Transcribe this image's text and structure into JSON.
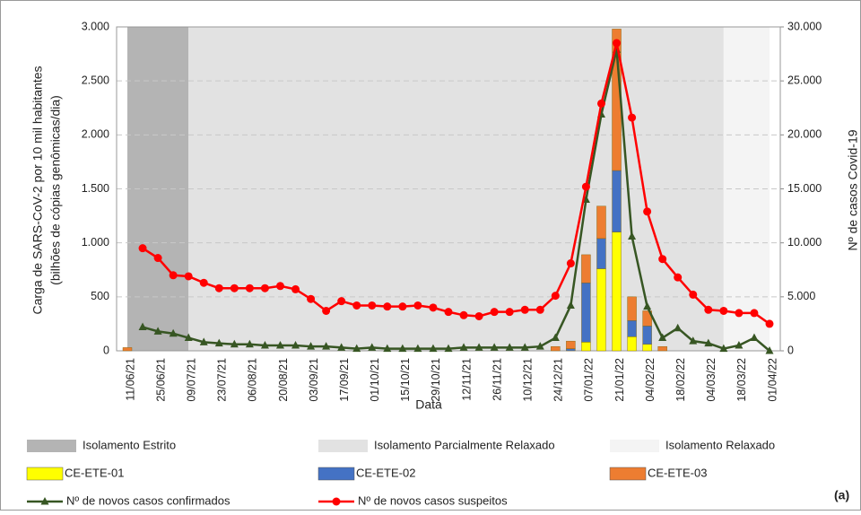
{
  "chart_data": {
    "type": "bar",
    "xlabel": "Data",
    "ylabel": [
      "Carga de SARS-CoV-2 por 10 mil habitantes",
      "(bilhões de cópias genômicas/dia)"
    ],
    "y2label": "Nº de casos Covid-19",
    "annotation": "(a)",
    "categories": [
      "11/06/21",
      null,
      "25/06/21",
      null,
      "09/07/21",
      null,
      "23/07/21",
      null,
      "06/08/21",
      null,
      "20/08/21",
      null,
      "03/09/21",
      null,
      "17/09/21",
      null,
      "01/10/21",
      null,
      "15/10/21",
      null,
      "29/10/21",
      null,
      "12/11/21",
      null,
      "26/11/21",
      null,
      "10/12/21",
      null,
      "24/12/21",
      null,
      "07/01/22",
      null,
      "21/01/22",
      null,
      "04/02/22",
      null,
      "18/02/22",
      null,
      "04/03/22",
      null,
      "18/03/22",
      null,
      "01/04/22"
    ],
    "ylim": [
      0,
      3000
    ],
    "yticks": [
      0,
      {
        "value": 500,
        "label": "500"
      },
      {
        "value": 1000,
        "label": "1.000"
      },
      {
        "value": 1500,
        "label": "1.500"
      },
      {
        "value": 2000,
        "label": "2.000"
      },
      {
        "value": 2500,
        "label": "2.500"
      },
      {
        "value": 3000,
        "label": "3.000"
      }
    ],
    "y2lim": [
      0,
      30000
    ],
    "y2ticks": [
      0,
      {
        "value": 5000,
        "label": "5.000"
      },
      {
        "value": 10000,
        "label": "10.000"
      },
      {
        "value": 15000,
        "label": "15.000"
      },
      {
        "value": 20000,
        "label": "20.000"
      },
      {
        "value": 25000,
        "label": "25.000"
      },
      {
        "value": 30000,
        "label": "30.000"
      }
    ],
    "grid": true,
    "regions": [
      {
        "name": "Isolamento Estrito",
        "color": "#b4b4b4",
        "start": 0,
        "end": 4
      },
      {
        "name": "Isolamento Parcialmente Relaxado",
        "color": "#e2e2e2",
        "start": 4,
        "end": 39
      },
      {
        "name": "Isolamento Relaxado",
        "color": "#f4f4f4",
        "start": 39,
        "end": 42
      }
    ],
    "series": [
      {
        "name": "CE-ETE-01",
        "type": "bar",
        "color": "#ffff00",
        "values": [
          null,
          null,
          null,
          null,
          null,
          null,
          null,
          null,
          null,
          null,
          null,
          null,
          null,
          null,
          null,
          null,
          null,
          null,
          null,
          null,
          null,
          null,
          null,
          null,
          null,
          null,
          null,
          null,
          null,
          null,
          80,
          760,
          1100,
          130,
          60,
          null,
          null,
          null,
          null,
          null,
          null,
          null,
          null
        ]
      },
      {
        "name": "CE-ETE-02",
        "type": "bar",
        "color": "#4472c4",
        "values": [
          null,
          null,
          null,
          null,
          null,
          null,
          null,
          null,
          null,
          null,
          null,
          null,
          null,
          null,
          null,
          null,
          null,
          null,
          null,
          null,
          null,
          null,
          null,
          null,
          null,
          null,
          null,
          null,
          null,
          20,
          550,
          280,
          570,
          150,
          170,
          null,
          null,
          null,
          null,
          null,
          null,
          null,
          null
        ]
      },
      {
        "name": "CE-ETE-03",
        "type": "bar",
        "color": "#ed7d31",
        "values": [
          30,
          null,
          null,
          null,
          null,
          null,
          null,
          null,
          null,
          null,
          null,
          null,
          null,
          null,
          null,
          null,
          null,
          null,
          null,
          null,
          null,
          null,
          null,
          null,
          null,
          null,
          null,
          null,
          40,
          70,
          260,
          300,
          1310,
          220,
          140,
          40,
          null,
          null,
          null,
          null,
          null,
          null,
          null
        ]
      },
      {
        "name": "Nº de novos casos confirmados",
        "type": "line",
        "marker": "triangle",
        "axis": "y2",
        "color": "#375623",
        "values": [
          null,
          2200,
          1800,
          1600,
          1200,
          800,
          700,
          600,
          600,
          500,
          500,
          500,
          400,
          400,
          300,
          200,
          300,
          200,
          200,
          200,
          200,
          200,
          300,
          300,
          300,
          300,
          300,
          400,
          1200,
          4200,
          14000,
          21900,
          27900,
          10600,
          4100,
          1200,
          2100,
          900,
          700,
          200,
          500,
          1200,
          0
        ]
      },
      {
        "name": "Nº de novos casos suspeitos",
        "type": "line",
        "marker": "circle",
        "axis": "y2",
        "color": "#ff0000",
        "values": [
          null,
          9500,
          8600,
          7000,
          6900,
          6300,
          5800,
          5800,
          5800,
          5800,
          6000,
          5700,
          4800,
          3700,
          4600,
          4200,
          4200,
          4100,
          4100,
          4200,
          4000,
          3600,
          3300,
          3200,
          3600,
          3600,
          3800,
          3800,
          5100,
          8100,
          15200,
          22900,
          28500,
          21600,
          12900,
          8500,
          6800,
          5200,
          3800,
          3700,
          3500,
          3500,
          2500
        ]
      }
    ]
  }
}
